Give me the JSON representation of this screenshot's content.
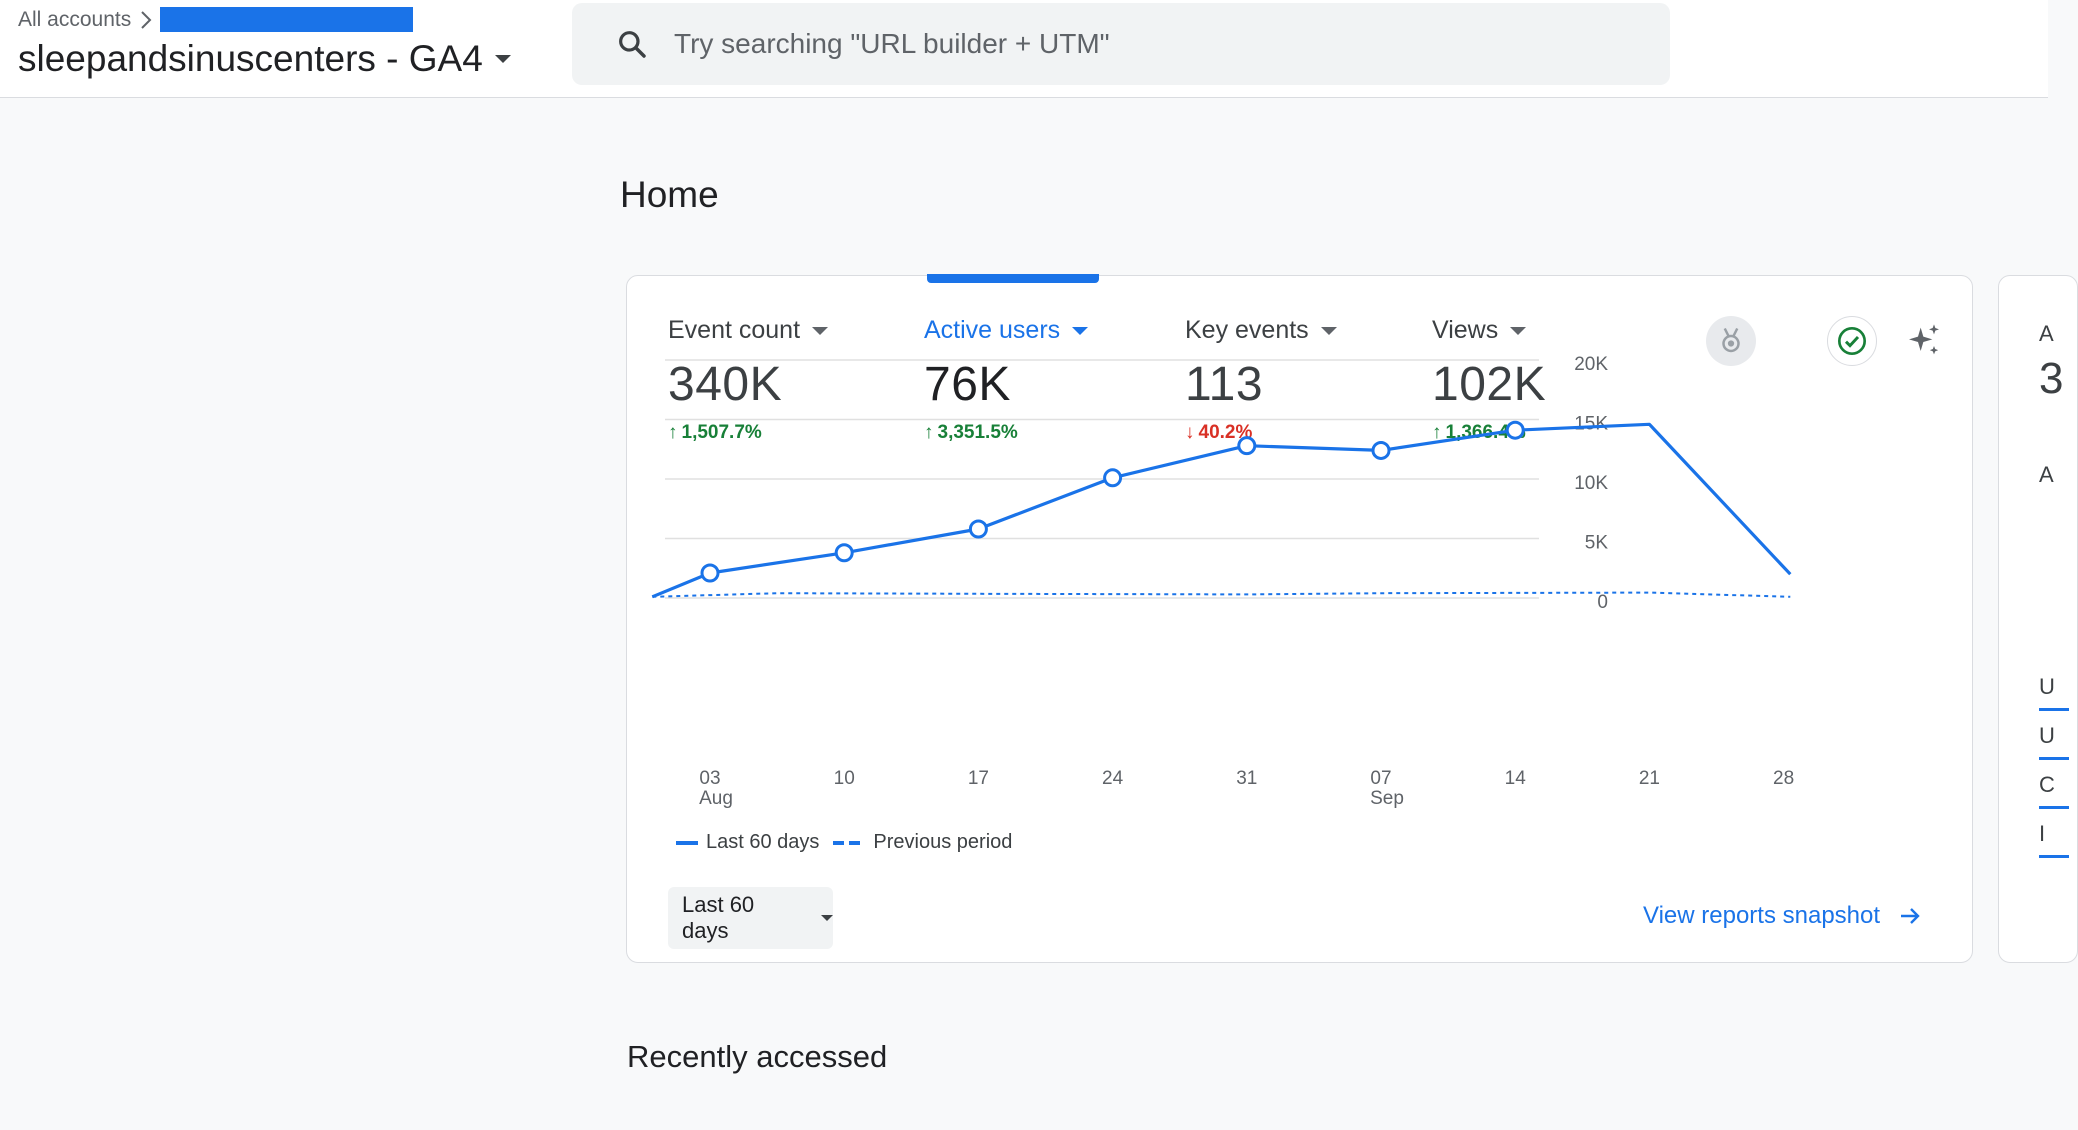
{
  "header": {
    "breadcrumb": "All accounts",
    "account_name": "sleepandsinuscenters - GA4",
    "search_placeholder": "Try searching \"URL builder + UTM\""
  },
  "page": {
    "title": "Home",
    "recently_accessed": "Recently accessed"
  },
  "metrics": [
    {
      "label": "Event count",
      "value": "340K",
      "change": "1,507.7%",
      "direction": "up",
      "arrow": "↑"
    },
    {
      "label": "Active users",
      "value": "76K",
      "change": "3,351.5%",
      "direction": "up",
      "arrow": "↑"
    },
    {
      "label": "Key events",
      "value": "113",
      "change": "40.2%",
      "direction": "down",
      "arrow": "↓"
    },
    {
      "label": "Views",
      "value": "102K",
      "change": "1,366.4%",
      "direction": "up",
      "arrow": "↑"
    }
  ],
  "legend": {
    "current": "Last 60 days",
    "previous": "Previous period"
  },
  "controls": {
    "date_range": "Last 60 days",
    "view_snapshot": "View reports snapshot"
  },
  "side_card": {
    "letters": [
      "A",
      "3",
      "A",
      "U",
      "U",
      "C",
      "I"
    ]
  },
  "colors": {
    "accent": "#1a73e8",
    "up": "#188038",
    "down": "#d93025"
  },
  "chart_data": {
    "type": "line",
    "x_ticks": [
      {
        "day": "03",
        "month": "Aug"
      },
      {
        "day": "10",
        "month": ""
      },
      {
        "day": "17",
        "month": ""
      },
      {
        "day": "24",
        "month": ""
      },
      {
        "day": "31",
        "month": ""
      },
      {
        "day": "07",
        "month": "Sep"
      },
      {
        "day": "14",
        "month": ""
      },
      {
        "day": "21",
        "month": ""
      },
      {
        "day": "28",
        "month": ""
      }
    ],
    "y_ticks": [
      "20K",
      "15K",
      "10K",
      "5K",
      "0"
    ],
    "ylim": [
      0,
      20000
    ],
    "series": [
      {
        "name": "Last 60 days",
        "style": "solid",
        "points": [
          {
            "x": -0.43,
            "y": 100,
            "marker": false
          },
          {
            "x": 0,
            "y": 2100,
            "marker": true
          },
          {
            "x": 1,
            "y": 3800,
            "marker": true
          },
          {
            "x": 2,
            "y": 5800,
            "marker": true
          },
          {
            "x": 3,
            "y": 10100,
            "marker": true
          },
          {
            "x": 4,
            "y": 12800,
            "marker": true
          },
          {
            "x": 5,
            "y": 12400,
            "marker": true
          },
          {
            "x": 6,
            "y": 14100,
            "marker": true
          },
          {
            "x": 7,
            "y": 14600,
            "marker": false
          },
          {
            "x": 8.05,
            "y": 2000,
            "marker": false
          }
        ]
      },
      {
        "name": "Previous period",
        "style": "dashed",
        "points": [
          {
            "x": -0.43,
            "y": 100
          },
          {
            "x": 0.5,
            "y": 400
          },
          {
            "x": 2,
            "y": 350
          },
          {
            "x": 4,
            "y": 300
          },
          {
            "x": 5,
            "y": 400
          },
          {
            "x": 7,
            "y": 450
          },
          {
            "x": 8.05,
            "y": 100
          }
        ]
      }
    ]
  }
}
